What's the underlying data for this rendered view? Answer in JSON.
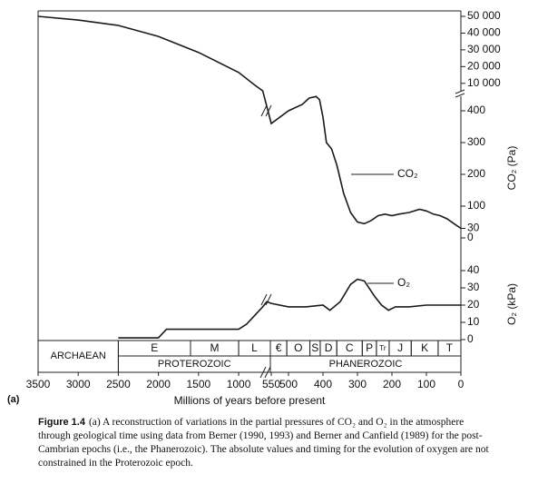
{
  "chart_data": {
    "type": "line",
    "xlabel": "Millions of years before present",
    "panel_label": "(a)",
    "x_segments": [
      {
        "xlim": [
          3500,
          650
        ],
        "xticks": [
          3500,
          3000,
          2500,
          2000,
          1500,
          1000
        ]
      },
      {
        "xlim": [
          550,
          0
        ],
        "xticks": [
          550,
          500,
          400,
          300,
          200,
          100,
          0
        ]
      }
    ],
    "panels": [
      {
        "ylabel": "CO₂ (Pa)",
        "y_segments": [
          {
            "ylim": [
              0,
              450
            ],
            "yticks": [
              0,
              30,
              100,
              200,
              300,
              400
            ]
          },
          {
            "ylim": [
              5000,
              50000
            ],
            "yticks": [
              {
                "value": 10000,
                "label": "10 000"
              },
              {
                "value": 20000,
                "label": "20 000"
              },
              {
                "value": 30000,
                "label": "30 000"
              },
              {
                "value": 40000,
                "label": "40 000"
              },
              {
                "value": 50000,
                "label": "50 000"
              }
            ]
          }
        ],
        "series": [
          {
            "name": "CO₂",
            "color": "#1a1a1a",
            "x": [
              3500,
              3000,
              2500,
              2000,
              1500,
              1000,
              800,
              700,
              550,
              500,
              460,
              440,
              420,
              410,
              400,
              390,
              375,
              360,
              340,
              320,
              300,
              280,
              260,
              240,
              220,
              200,
              180,
              150,
              120,
              100,
              80,
              60,
              40,
              20,
              0
            ],
            "values": [
              50000,
              47800,
              44600,
              38000,
              28500,
              16500,
              9000,
              5500,
              360,
              400,
              420,
              440,
              445,
              435,
              380,
              300,
              280,
              230,
              140,
              80,
              50,
              45,
              55,
              70,
              75,
              70,
              75,
              80,
              90,
              85,
              75,
              70,
              60,
              45,
              30
            ]
          }
        ]
      },
      {
        "ylabel": "O₂ (kPa)",
        "y_segments": [
          {
            "ylim": [
              0,
              40
            ],
            "yticks": [
              0,
              10,
              20,
              30,
              40
            ]
          }
        ],
        "series": [
          {
            "name": "O₂",
            "color": "#1a1a1a",
            "x": [
              2500,
              2000,
              1900,
              1000,
              900,
              800,
              700,
              650,
              550,
              500,
              450,
              400,
              380,
              350,
              320,
              300,
              280,
              250,
              230,
              210,
              190,
              150,
              100,
              0
            ],
            "values": [
              1,
              1,
              6,
              6,
              9,
              14,
              19,
              22,
              21,
              19,
              19,
              20,
              17,
              22,
              32,
              35,
              34,
              25,
              20,
              17,
              19,
              19,
              20,
              20
            ]
          }
        ]
      }
    ],
    "timescale": {
      "eons": [
        {
          "name": "ARCHAEAN",
          "start": 3500,
          "end": 2500
        },
        {
          "name": "PROTEROZOIC",
          "start": 2500,
          "end": 570
        },
        {
          "name": "PHANEROZOIC",
          "start": 570,
          "end": 0
        }
      ],
      "periods": [
        {
          "name": "E",
          "start": 2500,
          "end": 1600
        },
        {
          "name": "M",
          "start": 1600,
          "end": 1000
        },
        {
          "name": "L",
          "start": 1000,
          "end": 570
        },
        {
          "name": "€",
          "start": 570,
          "end": 505
        },
        {
          "name": "O",
          "start": 505,
          "end": 438
        },
        {
          "name": "S",
          "start": 438,
          "end": 408
        },
        {
          "name": "D",
          "start": 408,
          "end": 360
        },
        {
          "name": "C",
          "start": 360,
          "end": 286
        },
        {
          "name": "P",
          "start": 286,
          "end": 245
        },
        {
          "name": "Tr",
          "start": 245,
          "end": 208
        },
        {
          "name": "J",
          "start": 208,
          "end": 144
        },
        {
          "name": "K",
          "start": 144,
          "end": 66
        },
        {
          "name": "T",
          "start": 66,
          "end": 0
        }
      ]
    }
  },
  "caption": {
    "label": "Figure 1.4",
    "text": "(a) A reconstruction of variations in the partial pressures of CO₂ and O₂ in the atmosphere through geological time using data from Berner (1990, 1993) and Berner and Canfield (1989) for the post-Cambrian epochs (i.e., the Phanerozoic). The absolute values and timing for the evolution of oxygen are not constrained in the Proterozoic epoch."
  }
}
